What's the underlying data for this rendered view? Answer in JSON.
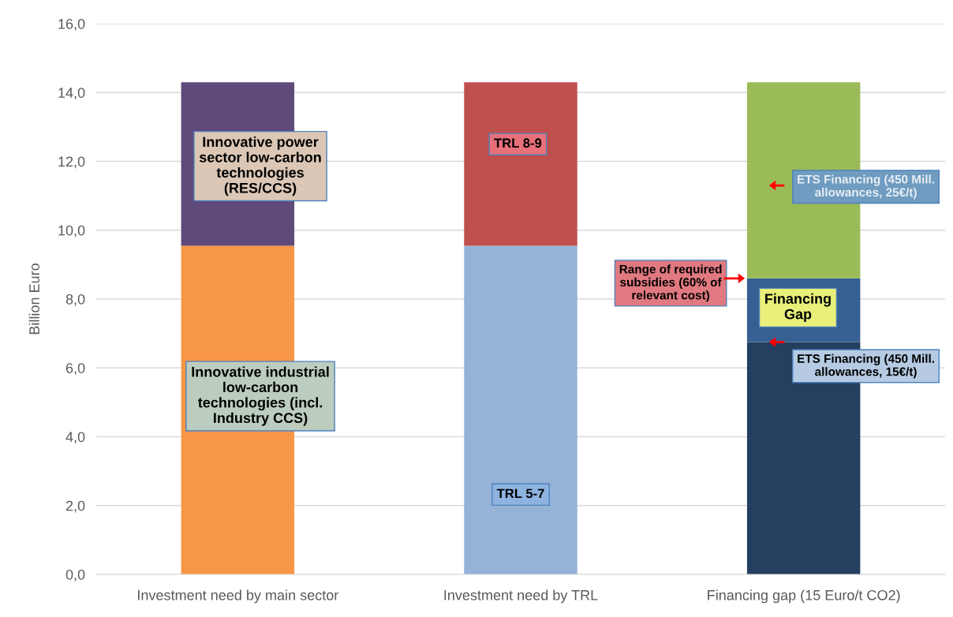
{
  "chart_data": {
    "type": "bar",
    "stacked": true,
    "ylabel": "Billion Euro",
    "categories": [
      "Investment need by main sector",
      "Investment need by TRL",
      "Financing gap (15 Euro/t CO2)"
    ],
    "series": [
      {
        "colors": [
          "#f79646",
          "#95b3d7",
          "#243f60"
        ],
        "values": [
          9.55,
          9.55,
          6.75
        ]
      },
      {
        "colors": [
          "#604a7b",
          "#c0504d",
          "#366092"
        ],
        "values": [
          4.75,
          4.75,
          1.85
        ]
      },
      {
        "colors": [
          null,
          null,
          "#9bbb59"
        ],
        "values": [
          null,
          null,
          5.7
        ]
      }
    ],
    "ylim": [
      0,
      16
    ],
    "yticks": [
      {
        "value": 0,
        "label": "0,0"
      },
      {
        "value": 2,
        "label": "2,0"
      },
      {
        "value": 4,
        "label": "4,0"
      },
      {
        "value": 6,
        "label": "6,0"
      },
      {
        "value": 8,
        "label": "8,0"
      },
      {
        "value": 10,
        "label": "10,0"
      },
      {
        "value": 12,
        "label": "12,0"
      },
      {
        "value": 14,
        "label": "14,0"
      },
      {
        "value": 16,
        "label": "16,0"
      }
    ],
    "grid": "y",
    "annotations": [
      "Innovative power\nsector low-carbon\ntechnologies\n(RES/CCS)",
      "Innovative industrial\nlow-carbon\ntechnologies (incl.\nIndustry CCS)",
      "TRL 8-9",
      "TRL 5-7",
      "Range of required\nsubsidies (60% of\nrelevant cost)",
      "ETS Financing (450 Mill.\nallowances, 25€/t)",
      "Financing\nGap",
      "ETS Financing (450 Mill.\nallowances, 15€/t)"
    ]
  }
}
